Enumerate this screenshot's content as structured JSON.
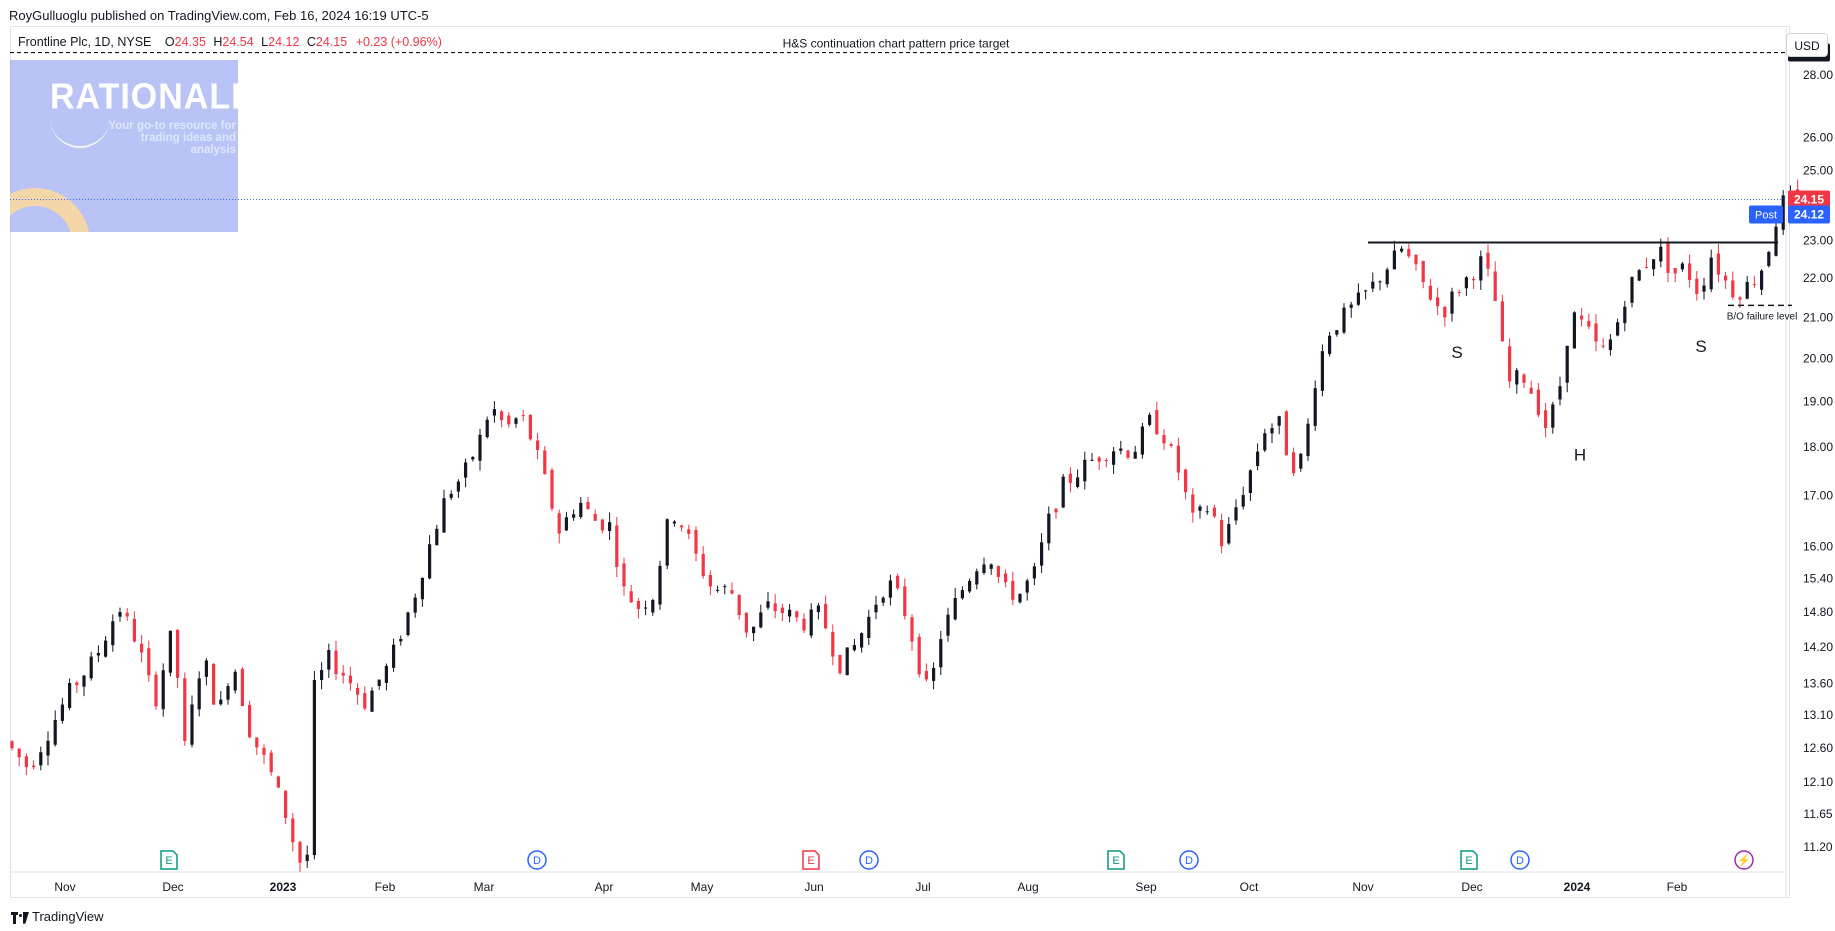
{
  "header": {
    "publisher": "RoyGulluoglu published on TradingView.com, Feb 16, 2024 16:19 UTC-5"
  },
  "legend": {
    "name": "Frontline Plc, 1D, NYSE",
    "open_label": "O",
    "open": "24.35",
    "high_label": "H",
    "high": "24.54",
    "low_label": "L",
    "low": "24.12",
    "close_label": "C",
    "close": "24.15",
    "change": "+0.23 (+0.96%)"
  },
  "currency": "USD",
  "watermark": {
    "title": "RATIONALE",
    "tagline": "Your go-to resource for trading ideas and analysis"
  },
  "footer": {
    "brand": "TradingView"
  },
  "colors": {
    "up": "#131722",
    "down": "#f23645",
    "post": "#2962ff",
    "grid": "#e0e3eb",
    "event_earnings": "#089981",
    "event_dividend": "#2962ff"
  },
  "chart_data": {
    "type": "candlestick",
    "y_scale": "log",
    "ylim": [
      10.9,
      29.6
    ],
    "y_ticks": [
      "28.00",
      "26.00",
      "25.00",
      "23.00",
      "22.00",
      "21.00",
      "20.00",
      "19.00",
      "18.00",
      "17.00",
      "16.00",
      "15.40",
      "14.80",
      "14.20",
      "13.60",
      "13.10",
      "12.60",
      "12.10",
      "11.65",
      "11.20"
    ],
    "x_ticks": [
      "Nov",
      "Dec",
      "2023",
      "Feb",
      "Mar",
      "Apr",
      "May",
      "Jun",
      "Jul",
      "Aug",
      "Sep",
      "Oct",
      "Nov",
      "Dec",
      "2024",
      "Feb"
    ],
    "x_ticks_bold": [
      "2023",
      "2024"
    ],
    "last_price": 24.15,
    "post_market": {
      "label": "Post",
      "price": 24.12
    },
    "target": {
      "price": 28.75,
      "label": "H&S continuation chart pattern price target"
    },
    "neckline": {
      "price": 22.95,
      "from": "Oct",
      "to": "Feb"
    },
    "failure_level": {
      "price": 21.3,
      "label": "B/O failure level"
    },
    "pattern_labels": [
      {
        "text": "S",
        "near": "Nov",
        "price": 20.15
      },
      {
        "text": "H",
        "near": "Dec",
        "price": 17.85
      },
      {
        "text": "S",
        "near": "Jan",
        "price": 20.3
      }
    ],
    "events": [
      {
        "type": "E",
        "kind": "earnings",
        "month": "Dec"
      },
      {
        "type": "D",
        "kind": "dividend",
        "month": "Mar"
      },
      {
        "type": "E",
        "kind": "earnings-miss",
        "month": "Jun"
      },
      {
        "type": "D",
        "kind": "dividend",
        "month": "Jun"
      },
      {
        "type": "E",
        "kind": "earnings",
        "month": "Aug"
      },
      {
        "type": "D",
        "kind": "dividend",
        "month": "Sep"
      },
      {
        "type": "E",
        "kind": "earnings",
        "month": "Nov"
      },
      {
        "type": "D",
        "kind": "dividend",
        "month": "Dec"
      },
      {
        "type": "⚡",
        "kind": "news",
        "month": "Feb"
      }
    ],
    "anchors": [
      [
        0,
        12.7
      ],
      [
        20,
        12.3
      ],
      [
        38,
        12.9
      ],
      [
        55,
        13.5
      ],
      [
        75,
        14.0
      ],
      [
        95,
        14.9
      ],
      [
        110,
        14.3
      ],
      [
        125,
        13.3
      ],
      [
        140,
        14.5
      ],
      [
        150,
        12.6
      ],
      [
        165,
        14.1
      ],
      [
        178,
        13.1
      ],
      [
        190,
        14.0
      ],
      [
        205,
        12.8
      ],
      [
        220,
        12.3
      ],
      [
        235,
        11.6
      ],
      [
        245,
        11.0
      ],
      [
        252,
        11.1
      ],
      [
        255,
        13.4
      ],
      [
        270,
        14.0
      ],
      [
        285,
        13.7
      ],
      [
        300,
        13.3
      ],
      [
        320,
        13.9
      ],
      [
        340,
        15.0
      ],
      [
        355,
        16.1
      ],
      [
        368,
        17.0
      ],
      [
        382,
        17.4
      ],
      [
        395,
        18.1
      ],
      [
        405,
        18.9
      ],
      [
        418,
        18.4
      ],
      [
        430,
        18.7
      ],
      [
        440,
        18.1
      ],
      [
        450,
        17.3
      ],
      [
        462,
        16.3
      ],
      [
        478,
        16.9
      ],
      [
        492,
        16.5
      ],
      [
        505,
        16.4
      ],
      [
        515,
        15.2
      ],
      [
        528,
        14.9
      ],
      [
        540,
        15.1
      ],
      [
        555,
        16.7
      ],
      [
        565,
        16.4
      ],
      [
        578,
        15.7
      ],
      [
        590,
        15.2
      ],
      [
        605,
        15.2
      ],
      [
        620,
        14.4
      ],
      [
        635,
        14.9
      ],
      [
        650,
        14.8
      ],
      [
        665,
        14.6
      ],
      [
        680,
        14.8
      ],
      [
        695,
        13.9
      ],
      [
        705,
        14.1
      ],
      [
        718,
        14.6
      ],
      [
        730,
        15.2
      ],
      [
        740,
        15.3
      ],
      [
        752,
        14.7
      ],
      [
        762,
        13.9
      ],
      [
        770,
        13.4
      ],
      [
        780,
        14.4
      ],
      [
        795,
        15.1
      ],
      [
        808,
        15.6
      ],
      [
        820,
        15.9
      ],
      [
        832,
        15.2
      ],
      [
        845,
        15.1
      ],
      [
        858,
        15.5
      ],
      [
        870,
        16.5
      ],
      [
        882,
        17.2
      ],
      [
        895,
        17.5
      ],
      [
        910,
        17.8
      ],
      [
        925,
        18.0
      ],
      [
        940,
        17.9
      ],
      [
        955,
        18.6
      ],
      [
        965,
        18.3
      ],
      [
        978,
        17.5
      ],
      [
        990,
        16.5
      ],
      [
        1005,
        16.8
      ],
      [
        1015,
        16.0
      ],
      [
        1025,
        16.7
      ],
      [
        1038,
        17.5
      ],
      [
        1050,
        18.4
      ],
      [
        1062,
        18.5
      ],
      [
        1072,
        17.6
      ],
      [
        1082,
        17.8
      ],
      [
        1092,
        19.5
      ],
      [
        1102,
        20.6
      ],
      [
        1115,
        21.0
      ],
      [
        1128,
        21.4
      ],
      [
        1140,
        21.8
      ],
      [
        1152,
        22.3
      ],
      [
        1165,
        22.8
      ],
      [
        1175,
        22.2
      ],
      [
        1185,
        21.7
      ],
      [
        1198,
        21.1
      ],
      [
        1210,
        21.7
      ],
      [
        1222,
        22.1
      ],
      [
        1232,
        22.5
      ],
      [
        1243,
        21.3
      ],
      [
        1252,
        19.4
      ],
      [
        1265,
        19.6
      ],
      [
        1275,
        19.1
      ],
      [
        1285,
        18.4
      ],
      [
        1295,
        19.2
      ],
      [
        1305,
        21.1
      ],
      [
        1318,
        20.7
      ],
      [
        1330,
        20.1
      ],
      [
        1340,
        20.5
      ],
      [
        1352,
        21.7
      ],
      [
        1365,
        22.3
      ],
      [
        1378,
        22.8
      ],
      [
        1390,
        22.1
      ],
      [
        1400,
        22.3
      ],
      [
        1412,
        21.6
      ],
      [
        1422,
        22.6
      ],
      [
        1432,
        22.0
      ],
      [
        1442,
        21.6
      ],
      [
        1452,
        21.8
      ],
      [
        1462,
        22.1
      ],
      [
        1470,
        22.8
      ],
      [
        1478,
        23.8
      ],
      [
        1483,
        24.15
      ]
    ]
  }
}
